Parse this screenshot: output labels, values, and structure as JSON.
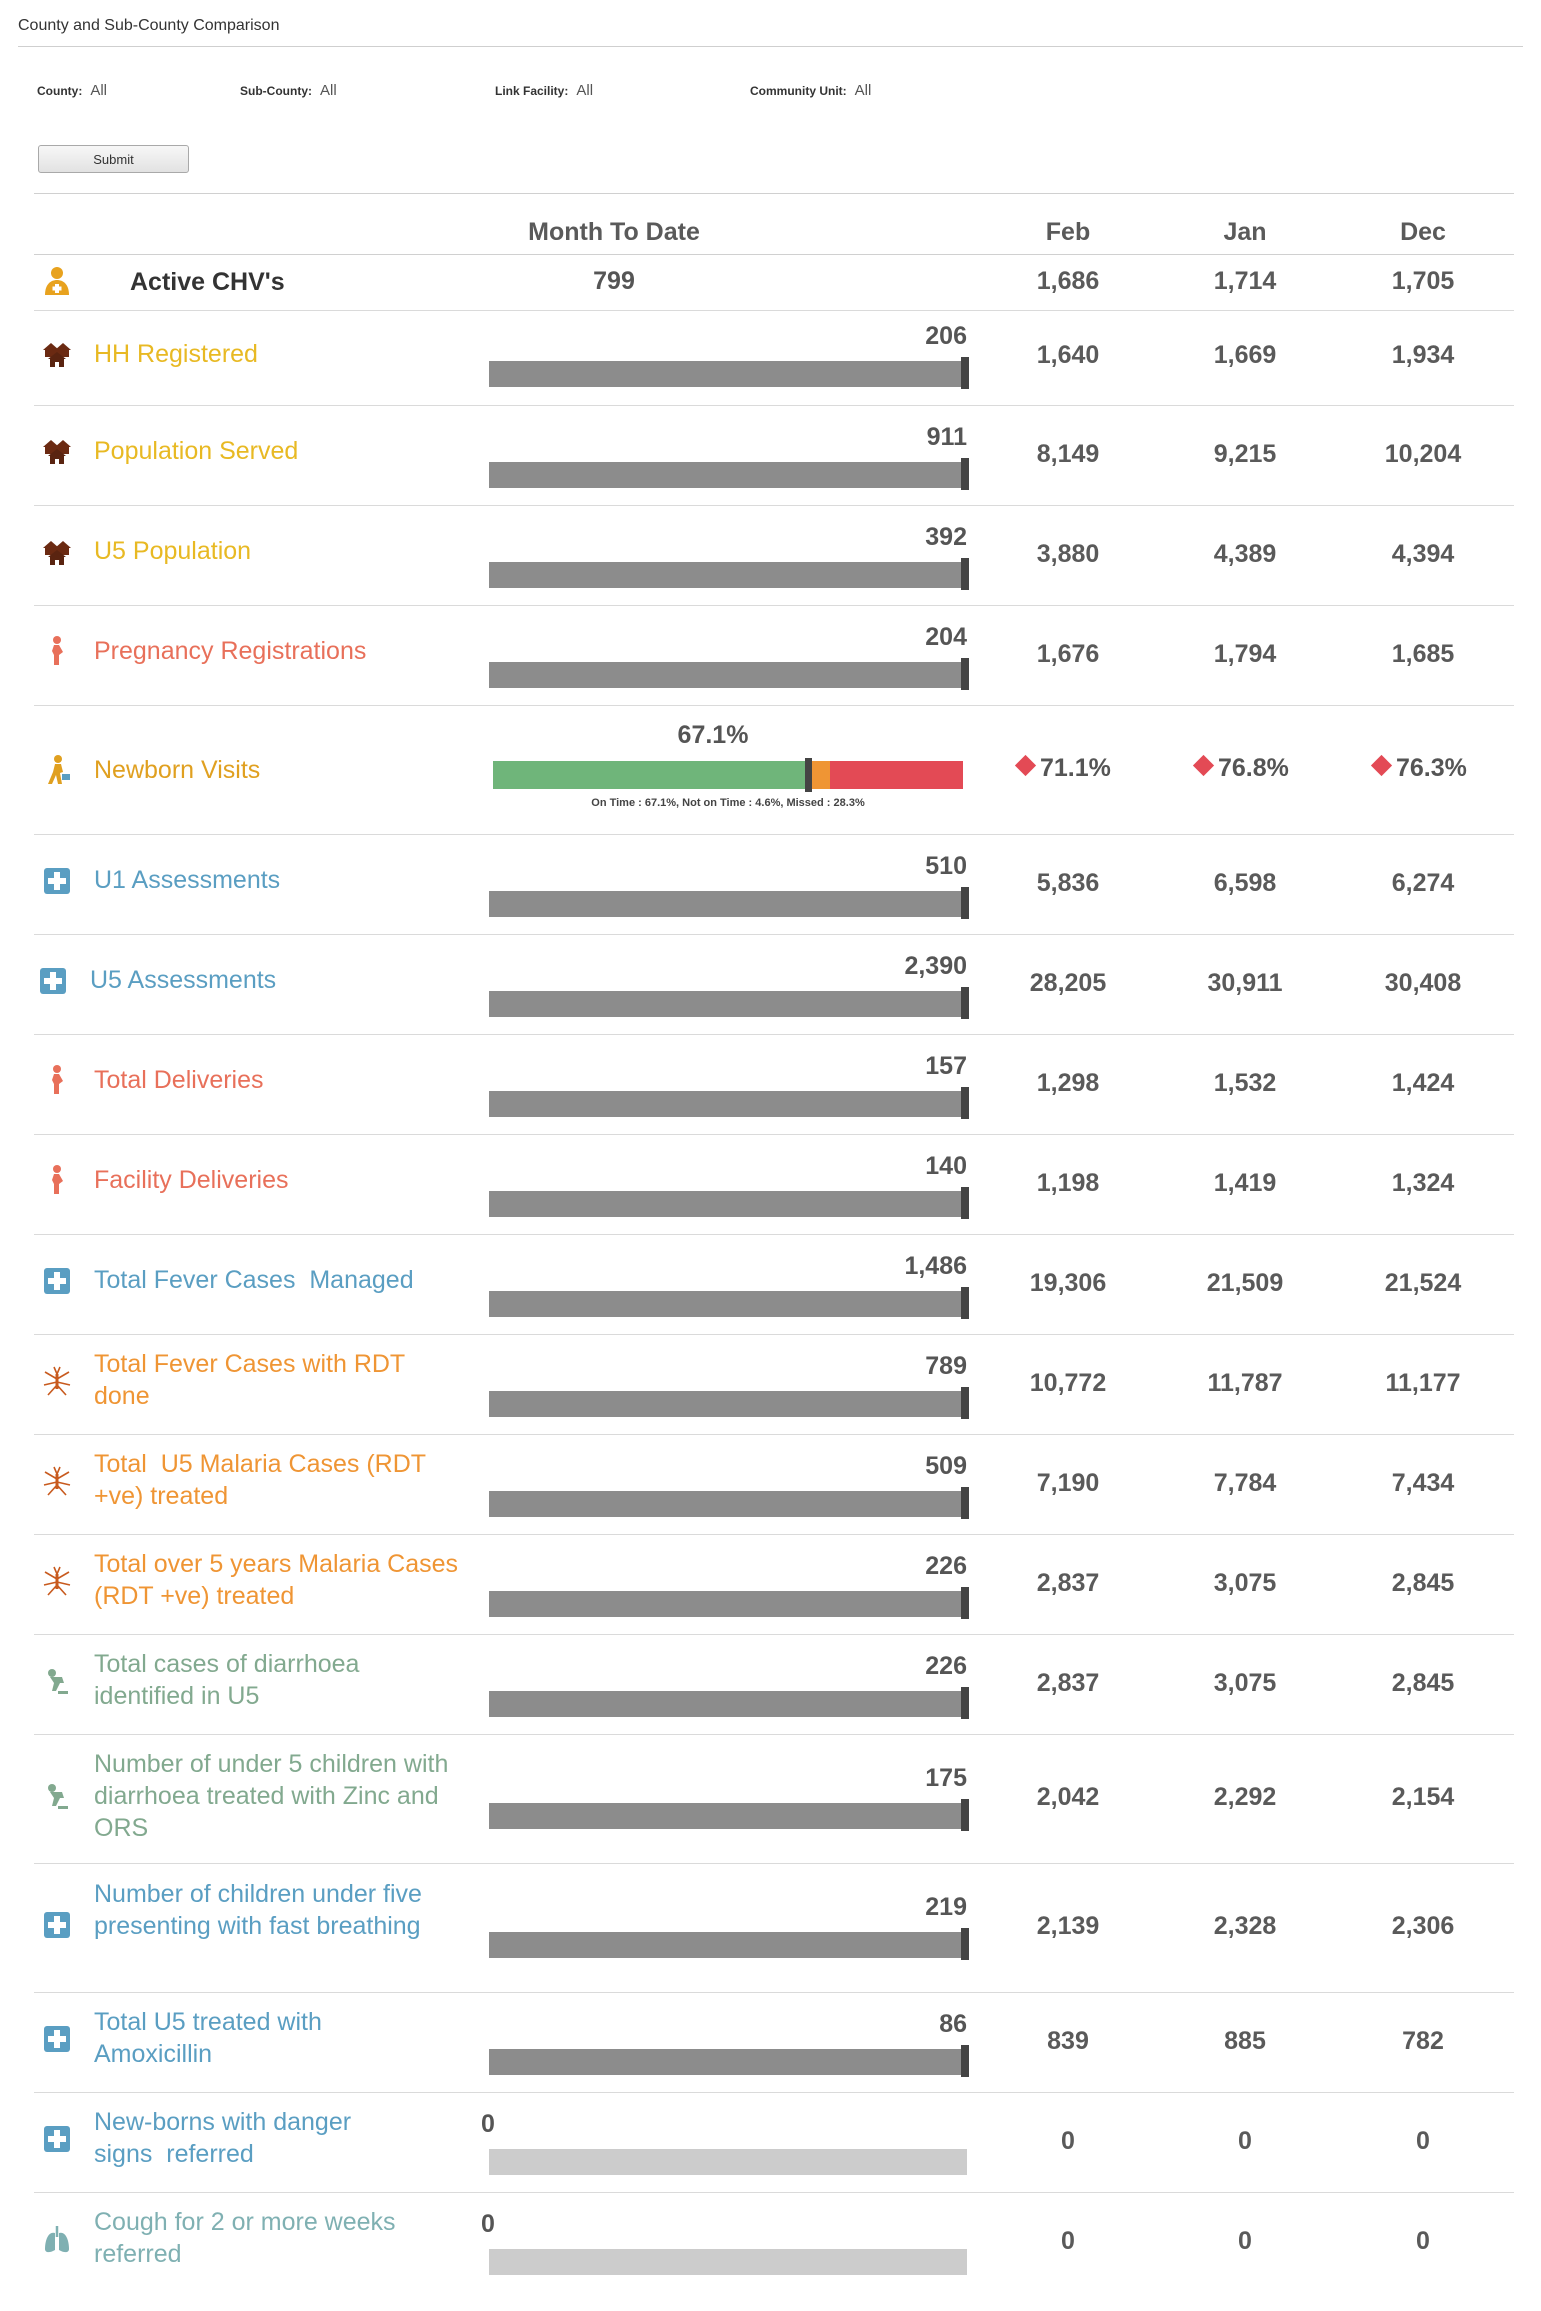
{
  "page_title": "County and Sub-County Comparison",
  "filters": [
    {
      "label": "County:",
      "value": "All"
    },
    {
      "label": "Sub-County:",
      "value": "All"
    },
    {
      "label": "Link Facility:",
      "value": "All"
    },
    {
      "label": "Community Unit:",
      "value": "All"
    }
  ],
  "submit_label": "Submit",
  "columns": {
    "mtd": "Month To Date",
    "feb": "Feb",
    "jan": "Jan",
    "dec": "Dec"
  },
  "chv": {
    "label": "Active CHV's",
    "mtd": "799",
    "feb": "1,686",
    "jan": "1,714",
    "dec": "1,705"
  },
  "rows": {
    "hh": {
      "label": "HH Registered",
      "mtd": "206",
      "fill": 1,
      "feb": "1,640",
      "jan": "1,669",
      "dec": "1,934"
    },
    "pop": {
      "label": "Population Served",
      "mtd": "911",
      "fill": 1,
      "feb": "8,149",
      "jan": "9,215",
      "dec": "10,204"
    },
    "u5pop": {
      "label": "U5 Population",
      "mtd": "392",
      "fill": 1,
      "feb": "3,880",
      "jan": "4,389",
      "dec": "4,394"
    },
    "preg": {
      "label": "Pregnancy Registrations",
      "mtd": "204",
      "fill": 1,
      "feb": "1,676",
      "jan": "1,794",
      "dec": "1,685"
    },
    "newborn": {
      "label": "Newborn Visits",
      "mtd": "67.1%",
      "on_time": 67.1,
      "not_on_time": 4.6,
      "missed": 28.3,
      "legend": "On Time : 67.1%, Not on Time : 4.6%, Missed : 28.3%",
      "feb": "71.1%",
      "jan": "76.8%",
      "dec": "76.3%"
    },
    "u1a": {
      "label": "U1 Assessments",
      "mtd": "510",
      "fill": 1,
      "feb": "5,836",
      "jan": "6,598",
      "dec": "6,274"
    },
    "u5a": {
      "label": "U5 Assessments",
      "mtd": "2,390",
      "fill": 1,
      "feb": "28,205",
      "jan": "30,911",
      "dec": "30,408"
    },
    "tdel": {
      "label": "Total Deliveries",
      "mtd": "157",
      "fill": 1,
      "feb": "1,298",
      "jan": "1,532",
      "dec": "1,424"
    },
    "fdel": {
      "label": "Facility Deliveries",
      "mtd": "140",
      "fill": 1,
      "feb": "1,198",
      "jan": "1,419",
      "dec": "1,324"
    },
    "fever": {
      "label": "Total Fever Cases  Managed",
      "mtd": "1,486",
      "fill": 1,
      "feb": "19,306",
      "jan": "21,509",
      "dec": "21,524"
    },
    "rdt": {
      "label": "Total Fever Cases with RDT done",
      "mtd": "789",
      "fill": 1,
      "feb": "10,772",
      "jan": "11,787",
      "dec": "11,177"
    },
    "u5mal": {
      "label": "Total  U5 Malaria Cases (RDT +ve) treated",
      "mtd": "509",
      "fill": 1,
      "feb": "7,190",
      "jan": "7,784",
      "dec": "7,434"
    },
    "o5mal": {
      "label": "Total over 5 years Malaria Cases (RDT +ve) treated",
      "mtd": "226",
      "fill": 1,
      "feb": "2,837",
      "jan": "3,075",
      "dec": "2,845"
    },
    "diar": {
      "label": "Total cases of diarrhoea identified in U5",
      "mtd": "226",
      "fill": 1,
      "feb": "2,837",
      "jan": "3,075",
      "dec": "2,845"
    },
    "zinc": {
      "label": "Number of under 5 children with diarrhoea treated with Zinc and ORS",
      "mtd": "175",
      "fill": 1,
      "feb": "2,042",
      "jan": "2,292",
      "dec": "2,154"
    },
    "fast": {
      "label": "Number of children under five presenting with fast breathing",
      "mtd": "219",
      "fill": 1,
      "feb": "2,139",
      "jan": "2,328",
      "dec": "2,306"
    },
    "amox": {
      "label": "Total U5 treated with Amoxicillin",
      "mtd": "86",
      "fill": 1,
      "feb": "839",
      "jan": "885",
      "dec": "782"
    },
    "danger": {
      "label": "New-borns with danger signs  referred",
      "mtd": "0",
      "fill": 0,
      "feb": "0",
      "jan": "0",
      "dec": "0"
    },
    "cough": {
      "label": "Cough for 2 or more weeks referred",
      "mtd": "0",
      "fill": 0,
      "feb": "0",
      "jan": "0",
      "dec": "0"
    }
  },
  "colors": {
    "yellow": "#e8b923",
    "salmon": "#e8705a",
    "orange_label": "#e0a020",
    "blue": "#5a9ec2",
    "orange": "#ef9534",
    "green_label": "#82a98f",
    "teal": "#7fb0b2",
    "bar": "#8c8c8c",
    "bar_empty": "#cccccc",
    "on_time": "#6fb57a",
    "not_on_time": "#ef9534",
    "missed": "#e34a55"
  },
  "icons": {
    "chv": "health-worker-icon",
    "household": "household-icon",
    "pregnant": "pregnant-woman-icon",
    "newborn": "home-visit-icon",
    "medical": "medical-cross-icon",
    "mosquito": "mosquito-icon",
    "diarrhoea": "diarrhoea-icon",
    "lungs": "lungs-icon"
  }
}
